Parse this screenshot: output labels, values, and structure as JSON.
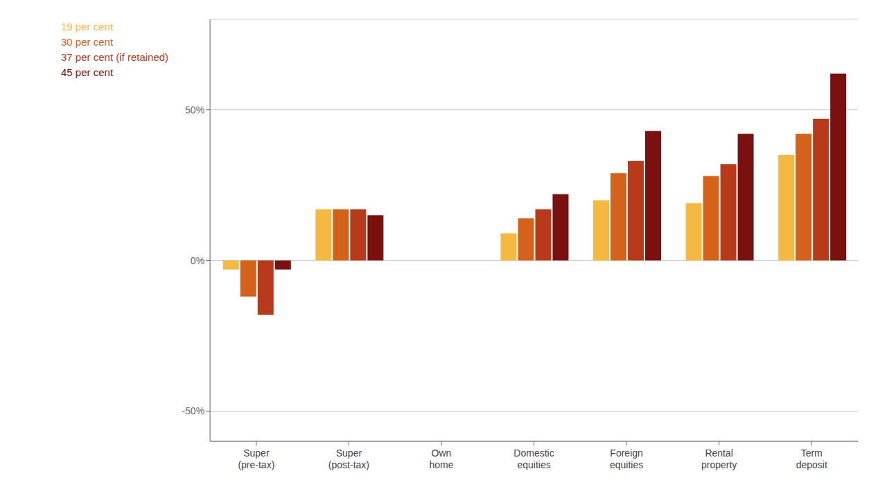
{
  "chart_data": {
    "type": "bar",
    "categories": [
      "Super\n(pre-tax)",
      "Super\n(post-tax)",
      "Own\nhome",
      "Domestic\nequities",
      "Foreign\nequities",
      "Rental\nproperty",
      "Term\ndeposit"
    ],
    "series": [
      {
        "name": "19 per cent",
        "color": "#F5B942",
        "values": [
          -3,
          17,
          0,
          9,
          20,
          19,
          35
        ]
      },
      {
        "name": "30 per cent",
        "color": "#D4621A",
        "values": [
          -12,
          17,
          0,
          14,
          29,
          28,
          42
        ]
      },
      {
        "name": "37 per cent (if retained)",
        "color": "#B83A1A",
        "values": [
          -18,
          17,
          0,
          17,
          33,
          32,
          47
        ]
      },
      {
        "name": "45 per cent",
        "color": "#7B1010",
        "values": [
          -3,
          15,
          0,
          22,
          43,
          42,
          62
        ]
      }
    ],
    "ylim": [
      -60,
      80
    ],
    "yticks": [
      {
        "value": -50,
        "label": "-50%"
      },
      {
        "value": 0,
        "label": "0%"
      },
      {
        "value": 50,
        "label": "50%"
      }
    ],
    "grid": true,
    "legend": "upper left"
  }
}
